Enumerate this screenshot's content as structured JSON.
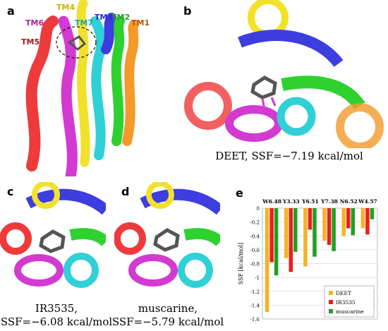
{
  "panels": {
    "a": {
      "label": "a",
      "tm_labels": [
        {
          "text": "TM4",
          "color": "#c8b400"
        },
        {
          "text": "TM6",
          "color": "#b0208c"
        },
        {
          "text": "TM7",
          "color": "#12a7b0"
        },
        {
          "text": "TM3",
          "color": "#2a2acc"
        },
        {
          "text": "TM2",
          "color": "#22a022"
        },
        {
          "text": "TM1",
          "color": "#b8550a"
        },
        {
          "text": "TM5",
          "color": "#a01a1a"
        }
      ]
    },
    "b": {
      "label": "b",
      "caption": "DEET, SSF=−7.19 kcal/mol"
    },
    "c": {
      "label": "c",
      "caption_line1": "IR3535,",
      "caption_line2": "SSF=−6.08 kcal/mol"
    },
    "d": {
      "label": "d",
      "caption_line1": "muscarine,",
      "caption_line2": "SSF=−5.79 kcal/mol"
    },
    "e": {
      "label": "e"
    }
  },
  "helix_colors": {
    "tm1": "#f39a2a",
    "tm2": "#2fd12f",
    "tm3": "#3d3de0",
    "tm4": "#f2e12a",
    "tm5": "#ee3a3a",
    "tm6": "#d23ad2",
    "tm7": "#2fd0d6",
    "ligand": "#555555"
  },
  "chart_data": {
    "type": "bar",
    "categories": [
      "W6.48",
      "Y3.33",
      "Y6.51",
      "Y7.38",
      "N6.52",
      "W4.57"
    ],
    "series": [
      {
        "name": "DEET",
        "color": "#f5b324",
        "values": [
          -1.5,
          -0.72,
          -0.84,
          -0.47,
          -0.4,
          -0.29
        ]
      },
      {
        "name": "IR3535",
        "color": "#e8201c",
        "values": [
          -0.78,
          -0.92,
          -0.31,
          -0.53,
          -0.29,
          -0.38
        ]
      },
      {
        "name": "muscarine",
        "color": "#21a021",
        "values": [
          -0.97,
          -0.63,
          -0.7,
          -0.62,
          -0.39,
          -0.16
        ]
      }
    ],
    "ylabel": "SSF [kcal/mol]",
    "yticks": [
      "0",
      "-0.2",
      "-0.4",
      "-0.6",
      "-0.8",
      "-1",
      "-1.2",
      "-1.4",
      "-1.6"
    ],
    "ylim": [
      -1.6,
      0
    ],
    "legend_position": "bottom-right",
    "grid": true
  }
}
